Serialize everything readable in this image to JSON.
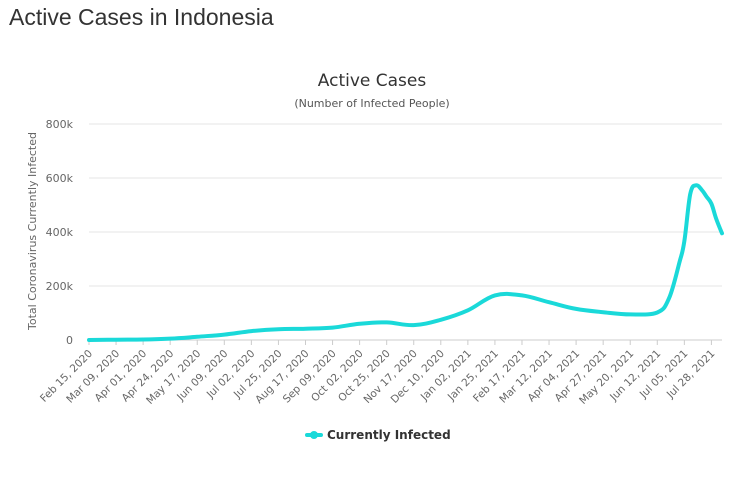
{
  "page": {
    "title": "Active Cases in Indonesia"
  },
  "chart_data": {
    "type": "line",
    "title": "Active Cases",
    "subtitle": "(Number of Infected People)",
    "xlabel": "",
    "ylabel": "Total Coronavirus Currently Infected",
    "ylim": [
      0,
      800000
    ],
    "yticks": [
      0,
      200000,
      400000,
      600000,
      800000
    ],
    "ytick_labels": [
      "0",
      "200k",
      "400k",
      "600k",
      "800k"
    ],
    "x_tick_labels": [
      "Feb 15, 2020",
      "Mar 09, 2020",
      "Apr 01, 2020",
      "Apr 24, 2020",
      "May 17, 2020",
      "Jun 09, 2020",
      "Jul 02, 2020",
      "Jul 25, 2020",
      "Aug 17, 2020",
      "Sep 09, 2020",
      "Oct 02, 2020",
      "Oct 25, 2020",
      "Nov 17, 2020",
      "Dec 10, 2020",
      "Jan 02, 2021",
      "Jan 25, 2021",
      "Feb 17, 2021",
      "Mar 12, 2021",
      "Apr 04, 2021",
      "Apr 27, 2021",
      "May 20, 2021",
      "Jun 12, 2021",
      "Jul 05, 2021",
      "Jul 28, 2021"
    ],
    "grid": true,
    "legend": "bottom-center",
    "series": [
      {
        "name": "Currently Infected",
        "color": "#1ad9d9",
        "x": [
          "Feb 15, 2020",
          "Mar 09, 2020",
          "Apr 01, 2020",
          "Apr 24, 2020",
          "May 17, 2020",
          "Jun 09, 2020",
          "Jul 02, 2020",
          "Jul 25, 2020",
          "Aug 17, 2020",
          "Sep 09, 2020",
          "Oct 02, 2020",
          "Oct 25, 2020",
          "Nov 17, 2020",
          "Dec 10, 2020",
          "Jan 02, 2021",
          "Jan 25, 2021",
          "Feb 17, 2021",
          "Mar 12, 2021",
          "Apr 04, 2021",
          "Apr 27, 2021",
          "May 20, 2021",
          "Jun 12, 2021",
          "Jun 22, 2021",
          "Jul 01, 2021",
          "Jul 05, 2021",
          "Jul 10, 2021",
          "Jul 15, 2021",
          "Jul 20, 2021",
          "Jul 24, 2021",
          "Jul 28, 2021",
          "Aug 01, 2021",
          "Aug 06, 2021"
        ],
        "values": [
          0,
          1000,
          2000,
          5000,
          12000,
          20000,
          33000,
          40000,
          42000,
          46000,
          60000,
          65000,
          55000,
          75000,
          110000,
          165000,
          165000,
          140000,
          115000,
          103000,
          95000,
          102000,
          155000,
          290000,
          365000,
          540000,
          573000,
          555000,
          530000,
          505000,
          450000,
          395000
        ]
      }
    ]
  }
}
